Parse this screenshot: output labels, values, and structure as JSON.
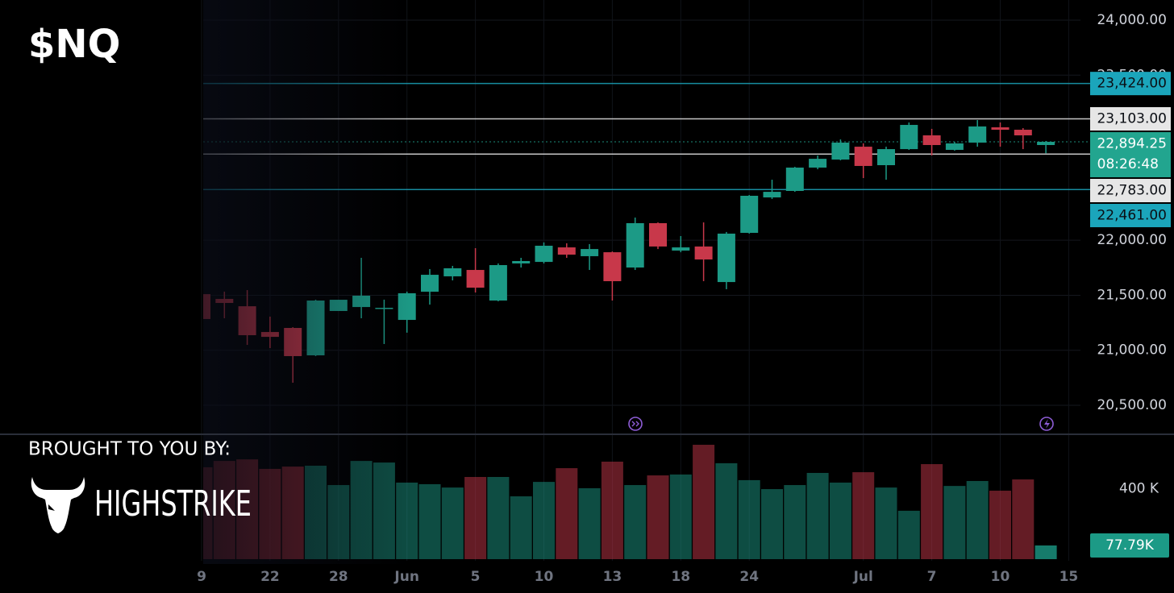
{
  "chart_data": {
    "type": "candlestick",
    "title": "$NQ",
    "categories": [
      "9",
      null,
      null,
      "22",
      null,
      null,
      "28",
      null,
      null,
      "Jun",
      null,
      null,
      "5",
      null,
      null,
      "10",
      null,
      null,
      "13",
      null,
      null,
      "18",
      null,
      null,
      "24",
      null,
      null,
      null,
      null,
      "Jul",
      null,
      null,
      "7",
      null,
      null,
      "10",
      null,
      null,
      "15"
    ],
    "open": [
      21510,
      21467,
      21400,
      21166,
      21203,
      20954,
      21357,
      21393,
      21379,
      21276,
      21532,
      21672,
      21730,
      21452,
      21789,
      21803,
      21935,
      21855,
      21891,
      21752,
      22155,
      21906,
      21943,
      21620,
      22067,
      22389,
      22448,
      22660,
      22733,
      22850,
      22682,
      22828,
      22953,
      22821,
      22887,
      23026,
      23004,
      22865,
      null
    ],
    "high": [
      21547,
      21533,
      21547,
      21306,
      21210,
      21460,
      21459,
      21840,
      21460,
      21533,
      21738,
      21767,
      21928,
      21789,
      21840,
      21980,
      21972,
      21965,
      21898,
      22206,
      22162,
      22038,
      22162,
      22075,
      22411,
      22550,
      22667,
      22770,
      22916,
      22880,
      22850,
      23070,
      23012,
      22894,
      23092,
      23070,
      23019,
      22902,
      null
    ],
    "low": [
      21280,
      21291,
      21049,
      21020,
      20705,
      20947,
      21357,
      21291,
      21057,
      21160,
      21415,
      21635,
      21525,
      21445,
      21752,
      21789,
      21840,
      21730,
      21452,
      21730,
      21920,
      21891,
      21628,
      21555,
      22060,
      22375,
      22440,
      22645,
      22726,
      22565,
      22550,
      22821,
      22770,
      22814,
      22850,
      22850,
      22828,
      22790,
      null
    ],
    "close": [
      21284,
      21430,
      21137,
      21122,
      20947,
      21452,
      21459,
      21496,
      21386,
      21518,
      21686,
      21745,
      21569,
      21774,
      21811,
      21950,
      21869,
      21920,
      21628,
      22155,
      21943,
      21935,
      21825,
      22060,
      22404,
      22440,
      22660,
      22740,
      22887,
      22675,
      22828,
      23048,
      22865,
      22880,
      23034,
      23004,
      22953,
      22894.25,
      null
    ],
    "up_color": "#1c9a86",
    "down_color": "#c8384a",
    "ylim": [
      20244,
      24183
    ],
    "yticks": [
      {
        "value": 20500,
        "label": "20,500.00"
      },
      {
        "value": 21000,
        "label": "21,000.00"
      },
      {
        "value": 21500,
        "label": "21,500.00"
      },
      {
        "value": 22000,
        "label": "22,000.00"
      },
      {
        "value": 23500,
        "label": "23,500.00"
      },
      {
        "value": 24000,
        "label": "24,000.00"
      }
    ],
    "grid": true,
    "levels": [
      {
        "value": 23424,
        "label": "23,424.00",
        "color": "#1ba5bb",
        "text_color": "#0b0e14"
      },
      {
        "value": 23103,
        "label": "23,103.00",
        "color": "#e6e6e6",
        "text_color": "#0b0e14"
      },
      {
        "value": 22894.25,
        "label": "22,894.25",
        "countdown": "08:26:48",
        "color": "#22a58f",
        "text_color": "#ffffff"
      },
      {
        "value": 22783,
        "label": "22,783.00",
        "color": "#e6e6e6",
        "text_color": "#0b0e14"
      },
      {
        "value": 22461,
        "label": "22,461.00",
        "color": "#1ba5bb",
        "text_color": "#0b0e14"
      }
    ],
    "volume": [
      522000,
      558000,
      567000,
      513000,
      526000,
      531000,
      421000,
      558000,
      549000,
      435000,
      426000,
      407000,
      467000,
      467000,
      357000,
      439000,
      517000,
      403000,
      554000,
      421000,
      476000,
      481000,
      650000,
      545000,
      449000,
      398000,
      421000,
      490000,
      435000,
      494000,
      407000,
      275000,
      540000,
      416000,
      444000,
      389000,
      453000,
      77790,
      null
    ],
    "volume_value_labels": [
      null,
      null,
      null,
      null,
      null,
      null,
      null,
      null,
      null,
      null,
      null,
      null,
      null,
      null,
      null,
      null,
      null,
      null,
      null,
      null,
      null,
      null,
      null,
      null,
      null,
      null,
      null,
      null,
      null,
      null,
      null,
      null,
      null,
      null,
      null,
      null,
      null,
      "77.79K",
      null
    ],
    "volume_ylim": [
      0,
      705000
    ],
    "volume_yticks": [
      {
        "value": 400000,
        "label": "400 K"
      }
    ]
  },
  "branding": {
    "sponsor_label": "BROUGHT TO YOU BY:",
    "sponsor": "HIGHSTRIKE"
  }
}
